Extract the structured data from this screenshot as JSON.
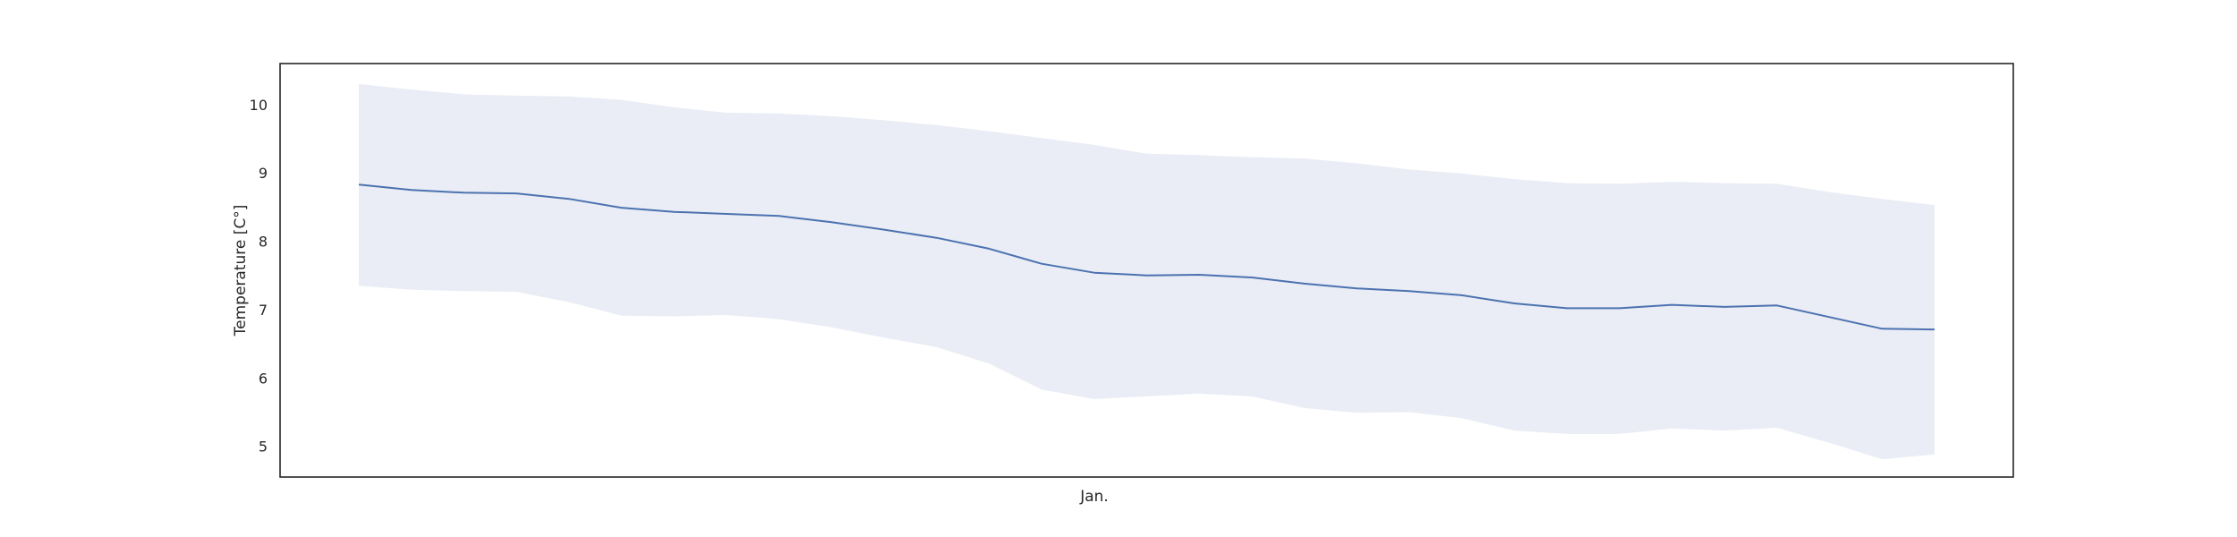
{
  "chart_data": {
    "type": "line",
    "title": "",
    "xlabel": "Jan.",
    "ylabel": "Temperature [C°]",
    "x": [
      1,
      2,
      3,
      4,
      5,
      6,
      7,
      8,
      9,
      10,
      11,
      12,
      13,
      14,
      15,
      16,
      17,
      18,
      19,
      20,
      21,
      22,
      23,
      24,
      25,
      26,
      27,
      28,
      29,
      30,
      31
    ],
    "xlim": [
      -0.5,
      32.5
    ],
    "ylim": [
      4.55,
      10.6
    ],
    "yticks": [
      5,
      6,
      7,
      8,
      9,
      10
    ],
    "grid": false,
    "legend": "none",
    "series": [
      {
        "values": [
          8.83,
          8.75,
          8.71,
          8.7,
          8.62,
          8.49,
          8.43,
          8.4,
          8.37,
          8.28,
          8.17,
          8.05,
          7.89,
          7.67,
          7.54,
          7.5,
          7.51,
          7.47,
          7.38,
          7.31,
          7.27,
          7.21,
          7.09,
          7.02,
          7.02,
          7.07,
          7.04,
          7.06,
          6.89,
          6.72,
          6.71
        ],
        "lower": [
          7.35,
          7.29,
          7.27,
          7.26,
          7.11,
          6.91,
          6.9,
          6.92,
          6.86,
          6.74,
          6.59,
          6.45,
          6.21,
          5.83,
          5.69,
          5.73,
          5.77,
          5.73,
          5.56,
          5.49,
          5.5,
          5.41,
          5.23,
          5.18,
          5.18,
          5.26,
          5.23,
          5.27,
          5.05,
          4.81,
          4.88
        ],
        "upper": [
          10.3,
          10.22,
          10.15,
          10.13,
          10.12,
          10.07,
          9.96,
          9.88,
          9.87,
          9.83,
          9.77,
          9.7,
          9.61,
          9.51,
          9.41,
          9.28,
          9.26,
          9.23,
          9.21,
          9.14,
          9.05,
          8.99,
          8.91,
          8.85,
          8.84,
          8.87,
          8.85,
          8.84,
          8.72,
          8.62,
          8.53
        ]
      }
    ],
    "colors": {
      "line": "#4c72b0",
      "band": "#eaedf5",
      "frame": "#262626"
    }
  }
}
